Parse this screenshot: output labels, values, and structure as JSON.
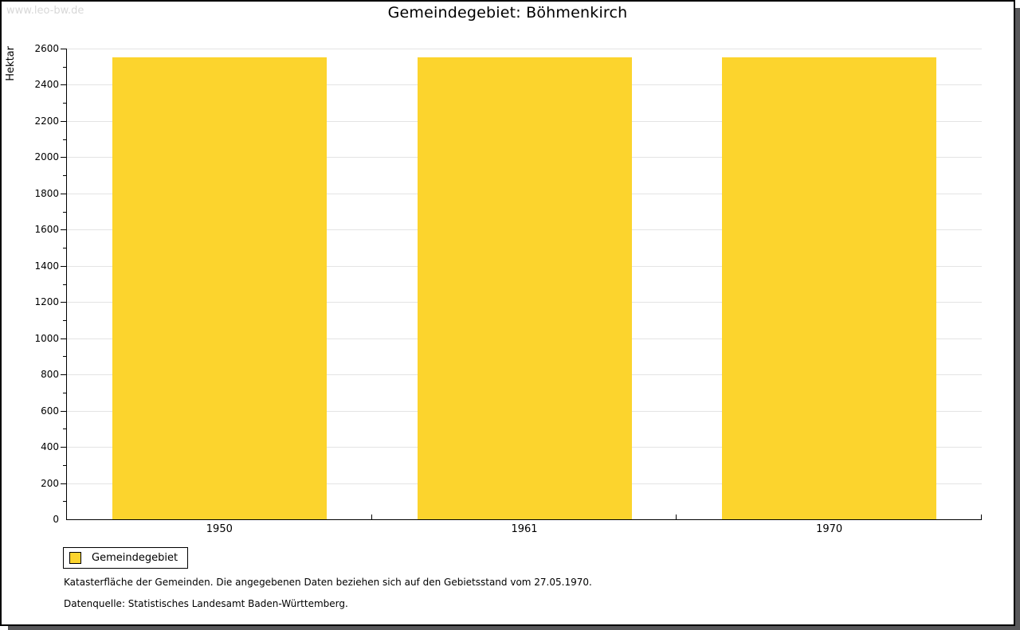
{
  "watermark": "www.leo-bw.de",
  "header": {
    "title": "Gemeindegebiet: Böhmenkirch"
  },
  "chart_data": {
    "type": "bar",
    "title": "Gemeindegebiet: Böhmenkirch",
    "ylabel": "Hektar",
    "xlabel": "",
    "categories": [
      "1950",
      "1961",
      "1970"
    ],
    "series": [
      {
        "name": "Gemeindegebiet",
        "color": "#FCD42D",
        "values": [
          2550,
          2550,
          2550
        ]
      }
    ],
    "ylim": [
      0,
      2600
    ],
    "ytick_major_step": 200,
    "ytick_minor_step": 100,
    "grid": true,
    "gridline_color": "#e4e4e4",
    "legend_position": "bottom-left",
    "units": "Hektar"
  },
  "legend": {
    "items": [
      {
        "label": "Gemeindegebiet",
        "color": "#FCD42D"
      }
    ]
  },
  "footnotes": {
    "line1": "Katasterfläche der Gemeinden. Die angegebenen Daten beziehen sich auf den Gebietsstand vom 27.05.1970.",
    "line2": "Datenquelle: Statistisches Landesamt Baden-Württemberg."
  },
  "colors": {
    "bar": "#FCD42D",
    "axis": "#000000",
    "gridline": "#e4e4e4",
    "watermark": "#d8d8d8",
    "frame_shadow": "#58585a"
  }
}
